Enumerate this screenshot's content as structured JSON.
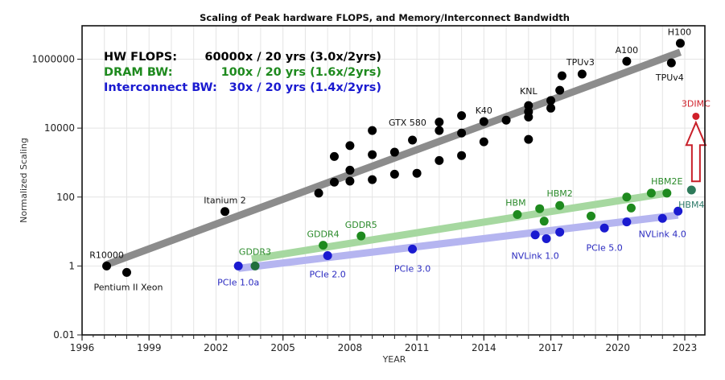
{
  "chart_data": {
    "type": "scatter",
    "title": "Scaling of Peak hardware FLOPS, and Memory/Interconnect Bandwidth",
    "xlabel": "YEAR",
    "ylabel": "Normalized Scaling",
    "xlim": [
      1996,
      2023.9
    ],
    "ylim": [
      0.01,
      10000000
    ],
    "yscale": "log",
    "grid": true,
    "x_ticks": [
      1996,
      1999,
      2002,
      2005,
      2008,
      2011,
      2014,
      2017,
      2020,
      2023
    ],
    "x_tick_labels": [
      "1996",
      "1999",
      "2002",
      "2005",
      "2008",
      "2011",
      "2014",
      "2017",
      "2020",
      "2023"
    ],
    "y_ticks": [
      0.01,
      1,
      100,
      10000,
      1000000
    ],
    "y_tick_labels": [
      "0.01",
      "1",
      "100",
      "10000",
      "1000000"
    ],
    "legend": {
      "placement": "top-left",
      "entries": [
        {
          "name": "HW FLOPS:",
          "text": "60000x / 20 yrs (3.0x/2yrs)",
          "color": "#000000"
        },
        {
          "name": "DRAM BW:",
          "text": "100x / 20 yrs (1.6x/2yrs)",
          "color": "#1e8a1e"
        },
        {
          "name": "Interconnect BW:",
          "text": "30x / 20 yrs (1.4x/2yrs)",
          "color": "#1a1ad0"
        }
      ]
    },
    "series": [
      {
        "name": "HW FLOPS",
        "color": "#000000",
        "trend": {
          "color": "#8c8c8c",
          "x": [
            1997.1,
            2022.8
          ],
          "y": [
            1.1,
            1600000
          ]
        },
        "points": [
          {
            "x": 1997.1,
            "y": 1,
            "label": "R10000"
          },
          {
            "x": 1998.0,
            "y": 0.65,
            "label": "Pentium II Xeon"
          },
          {
            "x": 2002.4,
            "y": 38,
            "label": "Itanium 2"
          },
          {
            "x": 2006.6,
            "y": 130
          },
          {
            "x": 2007.3,
            "y": 1500
          },
          {
            "x": 2007.3,
            "y": 270
          },
          {
            "x": 2008.0,
            "y": 3100
          },
          {
            "x": 2008.0,
            "y": 600
          },
          {
            "x": 2008.0,
            "y": 290
          },
          {
            "x": 2009.0,
            "y": 8500
          },
          {
            "x": 2009.0,
            "y": 1700
          },
          {
            "x": 2009.0,
            "y": 320
          },
          {
            "x": 2010.0,
            "y": 2000
          },
          {
            "x": 2010.0,
            "y": 460
          },
          {
            "x": 2010.8,
            "y": 4500
          },
          {
            "x": 2011.0,
            "y": 490
          },
          {
            "x": 2012.0,
            "y": 15000
          },
          {
            "x": 2012.0,
            "y": 8500,
            "label": "GTX 580"
          },
          {
            "x": 2012.0,
            "y": 1150
          },
          {
            "x": 2013.0,
            "y": 23000
          },
          {
            "x": 2013.0,
            "y": 7200
          },
          {
            "x": 2013.0,
            "y": 1600
          },
          {
            "x": 2014.0,
            "y": 15500,
            "label": "K40"
          },
          {
            "x": 2014.0,
            "y": 4000
          },
          {
            "x": 2015.0,
            "y": 17000
          },
          {
            "x": 2016.0,
            "y": 45000,
            "label": "KNL"
          },
          {
            "x": 2016.0,
            "y": 30000
          },
          {
            "x": 2016.0,
            "y": 21000
          },
          {
            "x": 2016.0,
            "y": 4700
          },
          {
            "x": 2017.0,
            "y": 63000
          },
          {
            "x": 2017.0,
            "y": 38000
          },
          {
            "x": 2017.4,
            "y": 125000
          },
          {
            "x": 2017.5,
            "y": 330000
          },
          {
            "x": 2018.4,
            "y": 370000,
            "label": "TPUv3"
          },
          {
            "x": 2020.4,
            "y": 870000,
            "label": "A100"
          },
          {
            "x": 2022.4,
            "y": 780000,
            "label": "TPUv4"
          },
          {
            "x": 2022.8,
            "y": 2900000,
            "label": "H100"
          }
        ]
      },
      {
        "name": "DRAM BW",
        "color": "#1e8a1e",
        "trend": {
          "color": "#a6d8a0",
          "x": [
            2003.6,
            2022.2
          ],
          "y": [
            1.6,
            130
          ]
        },
        "points": [
          {
            "x": 2003.75,
            "y": 1,
            "label": "GDDR3",
            "color": "#1f6e3c"
          },
          {
            "x": 2006.8,
            "y": 4,
            "label": "GDDR4"
          },
          {
            "x": 2008.5,
            "y": 7.4,
            "label": "GDDR5"
          },
          {
            "x": 2015.5,
            "y": 31,
            "label": "HBM"
          },
          {
            "x": 2016.5,
            "y": 46
          },
          {
            "x": 2016.7,
            "y": 20
          },
          {
            "x": 2017.4,
            "y": 57,
            "label": "HBM2"
          },
          {
            "x": 2018.8,
            "y": 28
          },
          {
            "x": 2020.4,
            "y": 100
          },
          {
            "x": 2020.6,
            "y": 48
          },
          {
            "x": 2021.5,
            "y": 130
          },
          {
            "x": 2022.2,
            "y": 130,
            "label": "HBM2E"
          },
          {
            "x": 2023.3,
            "y": 160,
            "label": "HBM4",
            "color": "#2e7a5a"
          }
        ]
      },
      {
        "name": "Interconnect BW",
        "color": "#1a1ad0",
        "trend": {
          "color": "#b5b5f0",
          "x": [
            2003.0,
            2022.7
          ],
          "y": [
            0.85,
            30
          ]
        },
        "points": [
          {
            "x": 2003.0,
            "y": 1,
            "label": "PCIe 1.0a"
          },
          {
            "x": 2007.0,
            "y": 2,
            "label": "PCIe 2.0"
          },
          {
            "x": 2010.8,
            "y": 3.1,
            "label": "PCIe 3.0"
          },
          {
            "x": 2016.3,
            "y": 8,
            "label": "NVLink 1.0"
          },
          {
            "x": 2016.8,
            "y": 6.2
          },
          {
            "x": 2017.4,
            "y": 9.6
          },
          {
            "x": 2019.4,
            "y": 12.6,
            "label": "PCIe 5.0"
          },
          {
            "x": 2020.4,
            "y": 19
          },
          {
            "x": 2022.0,
            "y": 24,
            "label": "NVLink 4.0"
          },
          {
            "x": 2022.7,
            "y": 39
          }
        ]
      },
      {
        "name": "3DIMC",
        "color": "#d0202a",
        "points": [
          {
            "x": 2023.5,
            "y": 22000,
            "label": "3DIMC"
          }
        ],
        "annotation": {
          "type": "arrow-up",
          "color": "#c8202a",
          "from_y": 150,
          "to_y": 18000,
          "x": 2023.5
        }
      }
    ]
  }
}
